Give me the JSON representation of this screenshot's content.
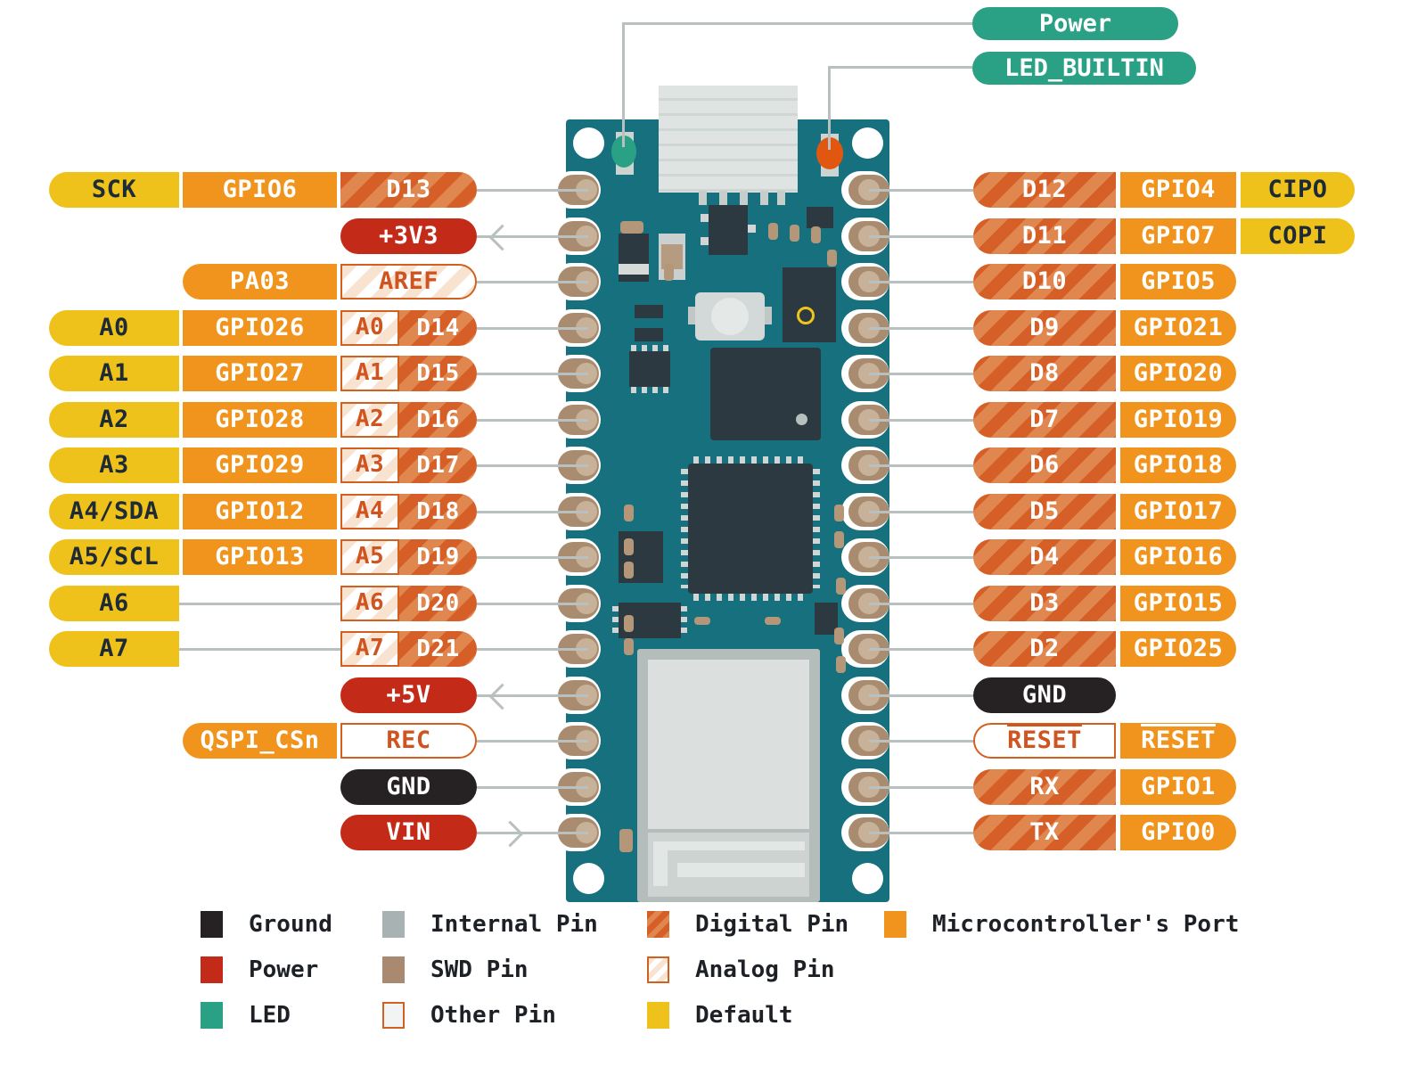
{
  "callouts": {
    "power": {
      "label": "Power"
    },
    "led_builtin": {
      "label": "LED_BUILTIN"
    }
  },
  "left_rows": [
    {
      "cells": [
        {
          "t": "SCK",
          "type": "default"
        },
        {
          "t": "GPIO6",
          "type": "port"
        },
        {
          "t": "D13",
          "type": "digital"
        }
      ]
    },
    {
      "cells": [
        null,
        null,
        {
          "t": "+3V3",
          "type": "power"
        }
      ],
      "arrow": "left"
    },
    {
      "cells": [
        null,
        {
          "t": "PA03",
          "type": "port"
        },
        {
          "t": "AREF",
          "type": "analog"
        }
      ]
    },
    {
      "cells": [
        {
          "t": "A0",
          "type": "default"
        },
        {
          "t": "GPIO26",
          "type": "port"
        },
        {
          "split": [
            "A0",
            "D14"
          ]
        }
      ]
    },
    {
      "cells": [
        {
          "t": "A1",
          "type": "default"
        },
        {
          "t": "GPIO27",
          "type": "port"
        },
        {
          "split": [
            "A1",
            "D15"
          ]
        }
      ]
    },
    {
      "cells": [
        {
          "t": "A2",
          "type": "default"
        },
        {
          "t": "GPIO28",
          "type": "port"
        },
        {
          "split": [
            "A2",
            "D16"
          ]
        }
      ]
    },
    {
      "cells": [
        {
          "t": "A3",
          "type": "default"
        },
        {
          "t": "GPIO29",
          "type": "port"
        },
        {
          "split": [
            "A3",
            "D17"
          ]
        }
      ]
    },
    {
      "cells": [
        {
          "t": "A4/SDA",
          "type": "default"
        },
        {
          "t": "GPIO12",
          "type": "port"
        },
        {
          "split": [
            "A4",
            "D18"
          ]
        }
      ]
    },
    {
      "cells": [
        {
          "t": "A5/SCL",
          "type": "default"
        },
        {
          "t": "GPIO13",
          "type": "port"
        },
        {
          "split": [
            "A5",
            "D19"
          ]
        }
      ]
    },
    {
      "cells": [
        {
          "t": "A6",
          "type": "default"
        },
        null,
        {
          "split": [
            "A6",
            "D20"
          ]
        }
      ],
      "bridge": true
    },
    {
      "cells": [
        {
          "t": "A7",
          "type": "default"
        },
        null,
        {
          "split": [
            "A7",
            "D21"
          ]
        }
      ],
      "bridge": true
    },
    {
      "cells": [
        null,
        null,
        {
          "t": "+5V",
          "type": "power"
        }
      ],
      "arrow": "left"
    },
    {
      "cells": [
        null,
        {
          "t": "QSPI_CSn",
          "type": "port"
        },
        {
          "t": "REC",
          "type": "other"
        }
      ]
    },
    {
      "cells": [
        null,
        null,
        {
          "t": "GND",
          "type": "ground"
        }
      ]
    },
    {
      "cells": [
        null,
        null,
        {
          "t": "VIN",
          "type": "power"
        }
      ],
      "arrow": "right"
    }
  ],
  "right_rows": [
    {
      "cells": [
        {
          "t": "D12",
          "type": "digital"
        },
        {
          "t": "GPIO4",
          "type": "port"
        },
        {
          "t": "CIPO",
          "type": "default"
        }
      ]
    },
    {
      "cells": [
        {
          "t": "D11",
          "type": "digital"
        },
        {
          "t": "GPIO7",
          "type": "port"
        },
        {
          "t": "COPI",
          "type": "default"
        }
      ]
    },
    {
      "cells": [
        {
          "t": "D10",
          "type": "digital"
        },
        {
          "t": "GPIO5",
          "type": "port"
        }
      ]
    },
    {
      "cells": [
        {
          "t": "D9",
          "type": "digital"
        },
        {
          "t": "GPIO21",
          "type": "port"
        }
      ]
    },
    {
      "cells": [
        {
          "t": "D8",
          "type": "digital"
        },
        {
          "t": "GPIO20",
          "type": "port"
        }
      ]
    },
    {
      "cells": [
        {
          "t": "D7",
          "type": "digital"
        },
        {
          "t": "GPIO19",
          "type": "port"
        }
      ]
    },
    {
      "cells": [
        {
          "t": "D6",
          "type": "digital"
        },
        {
          "t": "GPIO18",
          "type": "port"
        }
      ]
    },
    {
      "cells": [
        {
          "t": "D5",
          "type": "digital"
        },
        {
          "t": "GPIO17",
          "type": "port"
        }
      ]
    },
    {
      "cells": [
        {
          "t": "D4",
          "type": "digital"
        },
        {
          "t": "GPIO16",
          "type": "port"
        }
      ]
    },
    {
      "cells": [
        {
          "t": "D3",
          "type": "digital"
        },
        {
          "t": "GPIO15",
          "type": "port"
        }
      ]
    },
    {
      "cells": [
        {
          "t": "D2",
          "type": "digital"
        },
        {
          "t": "GPIO25",
          "type": "port"
        }
      ]
    },
    {
      "cells": [
        {
          "t": "GND",
          "type": "ground"
        }
      ]
    },
    {
      "cells": [
        {
          "t": "RESET",
          "type": "other",
          "overline": true
        },
        {
          "t": "RESET",
          "type": "port",
          "overline": true
        }
      ]
    },
    {
      "cells": [
        {
          "t": "RX",
          "type": "digital"
        },
        {
          "t": "GPIO1",
          "type": "port"
        }
      ]
    },
    {
      "cells": [
        {
          "t": "TX",
          "type": "digital"
        },
        {
          "t": "GPIO0",
          "type": "port"
        }
      ]
    }
  ],
  "legend_columns": [
    [
      {
        "label": "Ground",
        "type": "ground"
      },
      {
        "label": "Power",
        "type": "power"
      },
      {
        "label": "LED",
        "type": "led"
      }
    ],
    [
      {
        "label": "Internal Pin",
        "type": "internal"
      },
      {
        "label": "SWD Pin",
        "type": "swd"
      },
      {
        "label": "Other Pin",
        "type": "other"
      }
    ],
    [
      {
        "label": "Digital Pin",
        "type": "digital"
      },
      {
        "label": "Analog Pin",
        "type": "analog"
      },
      {
        "label": "Default",
        "type": "default"
      }
    ],
    [
      {
        "label": "Microcontroller's Port",
        "type": "port"
      }
    ]
  ],
  "colors": {
    "board_teal": "#16707e",
    "default_yellow": "#eec21a",
    "port_orange": "#f0941d",
    "digital_orange": "#d55f27",
    "power_red": "#c32a17",
    "ground_black": "#262122",
    "led_teal": "#2aa185",
    "internal_gray": "#a9b2b3",
    "swd_tan": "#a98a70",
    "analog_outline": "#d2601f",
    "wire_gray": "#b9c0c0"
  }
}
